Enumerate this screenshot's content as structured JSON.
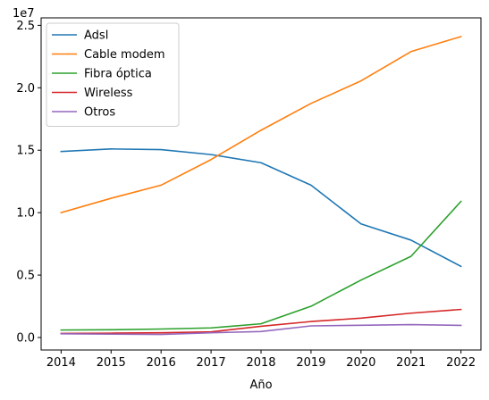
{
  "chart_data": {
    "type": "line",
    "title": "",
    "xlabel": "Año",
    "ylabel": "",
    "y_offset_label": "1e7",
    "x": [
      2014,
      2015,
      2016,
      2017,
      2018,
      2019,
      2020,
      2021,
      2022
    ],
    "xticks": [
      "2014",
      "2015",
      "2016",
      "2017",
      "2018",
      "2019",
      "2020",
      "2021",
      "2022"
    ],
    "xlim": [
      2013.6,
      2022.4
    ],
    "ylim": [
      -0.1,
      2.56
    ],
    "yticks": [
      0.0,
      0.5,
      1.0,
      1.5,
      2.0,
      2.5
    ],
    "ytick_labels": [
      "0.0",
      "0.5",
      "1.0",
      "1.5",
      "2.0",
      "2.5"
    ],
    "grid": false,
    "legend": "upper-left",
    "series": [
      {
        "name": "Adsl",
        "color": "#1f77b4",
        "values": [
          1.49,
          1.51,
          1.505,
          1.465,
          1.4,
          1.22,
          0.91,
          0.78,
          0.57
        ]
      },
      {
        "name": "Cable modem",
        "color": "#ff7f0e",
        "values": [
          1.0,
          1.115,
          1.22,
          1.425,
          1.66,
          1.875,
          2.055,
          2.29,
          2.41
        ]
      },
      {
        "name": "Fibra óptica",
        "color": "#2ca02c",
        "values": [
          0.06,
          0.062,
          0.068,
          0.077,
          0.11,
          0.25,
          0.46,
          0.65,
          1.09
        ]
      },
      {
        "name": "Wireless",
        "color": "#d62728",
        "values": [
          0.033,
          0.035,
          0.038,
          0.045,
          0.09,
          0.128,
          0.155,
          0.195,
          0.225
        ]
      },
      {
        "name": "Otros",
        "color": "#9467bd",
        "values": [
          0.03,
          0.027,
          0.025,
          0.038,
          0.048,
          0.093,
          0.098,
          0.103,
          0.097
        ]
      }
    ]
  }
}
